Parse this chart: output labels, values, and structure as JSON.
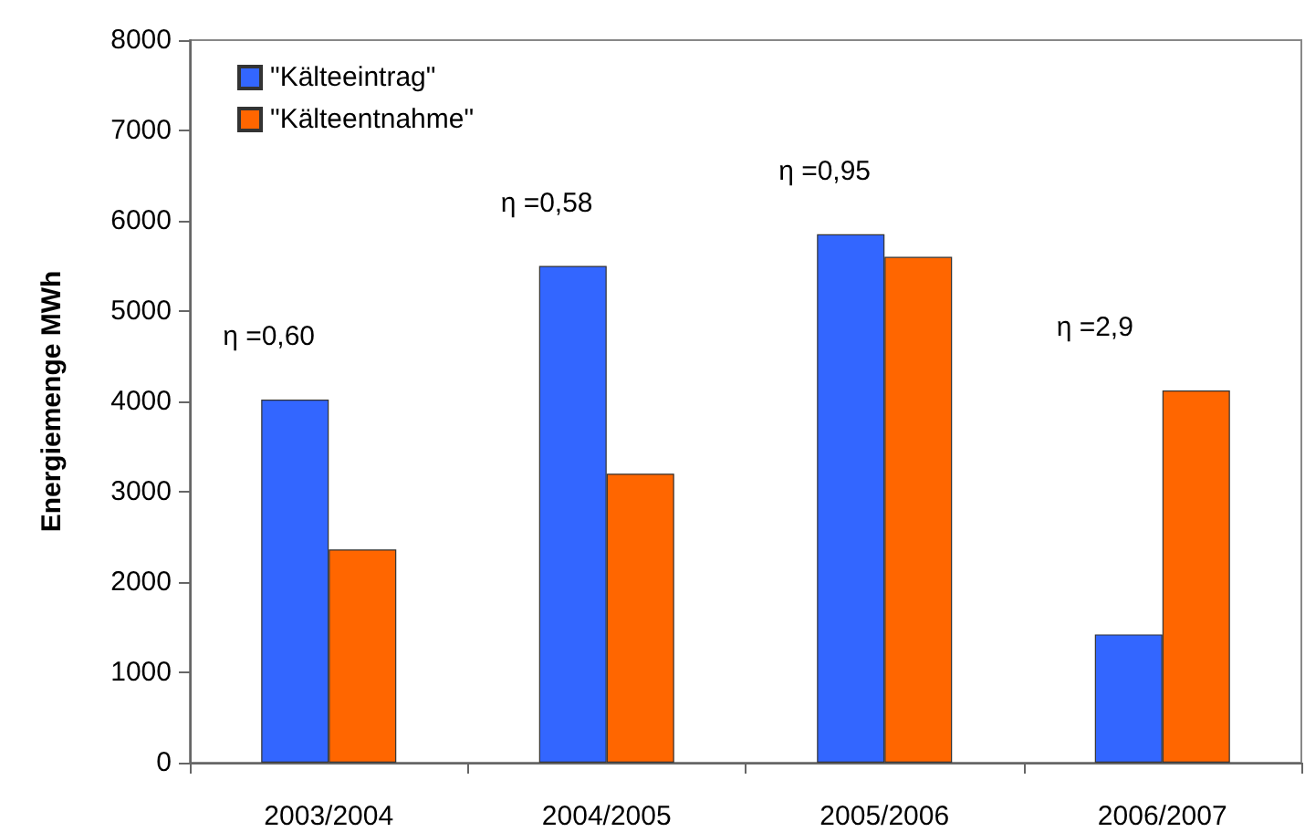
{
  "chart_data": {
    "type": "bar",
    "ylabel": "Energiemenge MWh",
    "categories": [
      "2003/2004",
      "2004/2005",
      "2005/2006",
      "2006/2007"
    ],
    "series": [
      {
        "name": "\"Kälteeintrag\"",
        "color": "#3366ff",
        "values": [
          4020,
          5500,
          5850,
          1420
        ]
      },
      {
        "name": "\"Kälteentnahme\"",
        "color": "#ff6600",
        "values": [
          2360,
          3200,
          5600,
          4120
        ]
      }
    ],
    "ylim": [
      0,
      8000
    ],
    "yticks": [
      0,
      1000,
      2000,
      3000,
      4000,
      5000,
      6000,
      7000,
      8000
    ],
    "grid": false,
    "legend": "top left",
    "annotations": [
      {
        "text": "η =0,60",
        "x": "2003/2004",
        "y": 4020
      },
      {
        "text": "η =0,58",
        "x": "2004/2005",
        "y": 5500
      },
      {
        "text": "η =0,95",
        "x": "2005/2006",
        "y": 5850
      },
      {
        "text": "η =2,9",
        "x": "2006/2007",
        "y": 4120
      }
    ]
  }
}
